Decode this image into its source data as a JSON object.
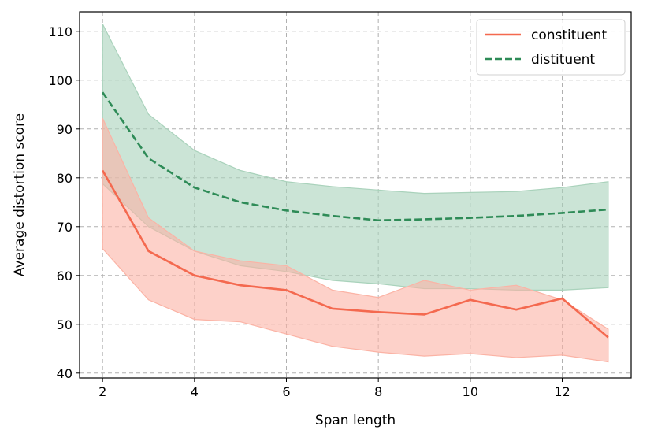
{
  "chart_data": {
    "type": "line",
    "xlabel": "Span length",
    "ylabel": "Average distortion score",
    "xlim": [
      1.5,
      13.5
    ],
    "ylim": [
      39,
      114
    ],
    "xticks": [
      2,
      4,
      6,
      8,
      10,
      12
    ],
    "yticks": [
      40,
      50,
      60,
      70,
      80,
      90,
      100,
      110
    ],
    "grid": true,
    "legend_position": "top-right",
    "x": [
      2,
      3,
      4,
      5,
      6,
      7,
      8,
      9,
      10,
      11,
      12,
      13
    ],
    "series": [
      {
        "name": "constituent",
        "style": "solid",
        "color": "#f4694f",
        "band_color": "#fbb3a5",
        "values": [
          81.5,
          65.0,
          60.0,
          58.0,
          57.0,
          53.2,
          52.5,
          52.0,
          55.0,
          53.0,
          55.3,
          47.3
        ],
        "lower": [
          65.5,
          55.0,
          51.0,
          50.5,
          48.0,
          45.5,
          44.3,
          43.5,
          44.0,
          43.2,
          43.7,
          42.3
        ],
        "upper": [
          92.2,
          71.8,
          65.0,
          63.0,
          62.0,
          57.0,
          55.5,
          59.0,
          57.0,
          58.0,
          55.0,
          49.0
        ]
      },
      {
        "name": "distituent",
        "style": "dashed",
        "color": "#2e8b57",
        "band_color": "#a9d2bb",
        "values": [
          97.5,
          84.0,
          78.0,
          75.0,
          73.3,
          72.2,
          71.3,
          71.5,
          71.8,
          72.2,
          72.8,
          73.5
        ],
        "lower": [
          78.8,
          70.0,
          65.0,
          62.0,
          60.8,
          59.0,
          58.3,
          57.3,
          57.3,
          57.0,
          57.0,
          57.5
        ],
        "upper": [
          111.5,
          93.0,
          85.6,
          81.5,
          79.2,
          78.2,
          77.5,
          76.8,
          77.0,
          77.2,
          78.0,
          79.2
        ]
      }
    ]
  }
}
